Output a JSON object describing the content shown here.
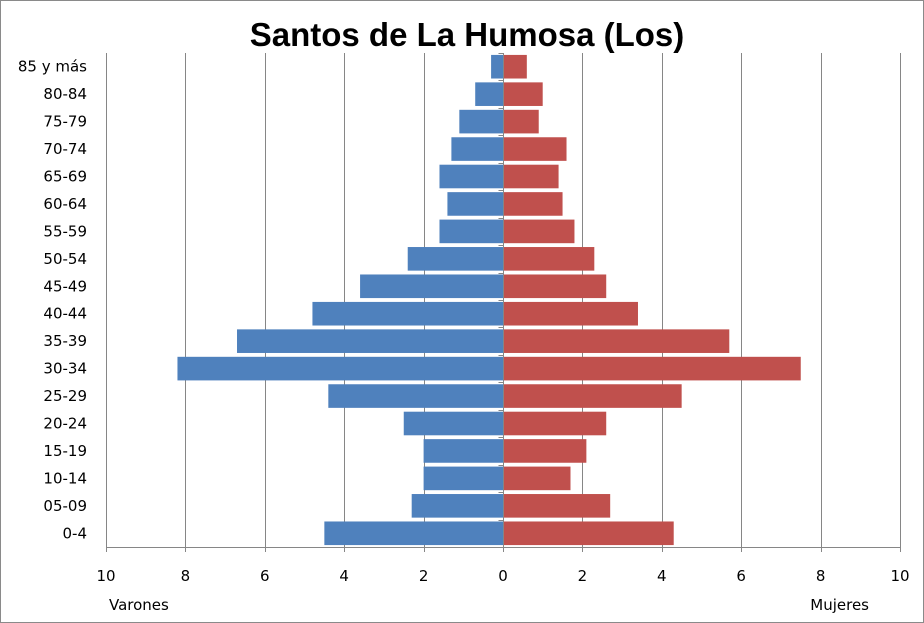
{
  "chart_data": {
    "type": "bar",
    "orientation": "horizontal",
    "title": "Santos de La Humosa (Los)",
    "categories": [
      "0-4",
      "05-09",
      "10-14",
      "15-19",
      "20-24",
      "25-29",
      "30-34",
      "35-39",
      "40-44",
      "45-49",
      "50-54",
      "55-59",
      "60-64",
      "65-69",
      "70-74",
      "75-79",
      "80-84",
      "85 y más"
    ],
    "series": [
      {
        "name": "Varones",
        "color": "#4f81bd",
        "side": "left",
        "values": [
          4.5,
          2.3,
          2.0,
          2.0,
          2.5,
          4.4,
          8.2,
          6.7,
          4.8,
          3.6,
          2.4,
          1.6,
          1.4,
          1.6,
          1.3,
          1.1,
          0.7,
          0.3
        ]
      },
      {
        "name": "Mujeres",
        "color": "#c0504d",
        "side": "right",
        "values": [
          4.3,
          2.7,
          1.7,
          2.1,
          2.6,
          4.5,
          7.5,
          5.7,
          3.4,
          2.6,
          2.3,
          1.8,
          1.5,
          1.4,
          1.6,
          0.9,
          1.0,
          0.6
        ]
      }
    ],
    "xlim": [
      -10,
      10
    ],
    "x_ticks": [
      -10,
      -8,
      -6,
      -4,
      -2,
      0,
      2,
      4,
      6,
      8,
      10
    ],
    "x_tick_labels": [
      "10",
      "8",
      "6",
      "4",
      "2",
      "0",
      "2",
      "4",
      "6",
      "8",
      "10"
    ],
    "xlabel_left": "Varones",
    "xlabel_right": "Mujeres",
    "grid": "vertical"
  }
}
